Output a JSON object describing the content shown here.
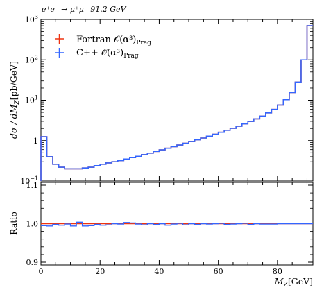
{
  "chart_data": {
    "type": "line",
    "title": "e⁺e⁻ → μ⁺μ⁻ 91.2 GeV",
    "xlabel": "M",
    "xlabel_sub": "Z",
    "xlabel_unit": "[GeV]",
    "ylabel": "dσ / dM",
    "ylabel_sub": "Z",
    "ylabel_unit": "[pb/GeV]",
    "ratio_ylabel": "Ratio",
    "xlim": [
      0,
      92
    ],
    "ylim": [
      0.1,
      1000
    ],
    "yscale": "log",
    "ratio_ylim": [
      0.9,
      1.1
    ],
    "x_ticks": [
      "0",
      "20",
      "40",
      "60",
      "80"
    ],
    "main_y_ticks": [
      {
        "base": "10",
        "exp": "3",
        "value": 1000
      },
      {
        "base": "10",
        "exp": "2",
        "value": 100
      },
      {
        "base": "10",
        "exp": "1",
        "value": 10
      },
      {
        "base": "1",
        "exp": "",
        "value": 1
      },
      {
        "base": "10",
        "exp": "−1",
        "value": 0.1
      }
    ],
    "ratio_y_ticks": [
      "1.1",
      "1.0",
      "0.9"
    ],
    "legend": [
      {
        "name": "Fortran 𝒪(α³)",
        "sub": "Prag",
        "color": "#ee3311"
      },
      {
        "name": "C++ 𝒪(α³)",
        "sub": "Prag",
        "color": "#3366ff"
      }
    ],
    "bin_edges": [
      0,
      2,
      4,
      6,
      8,
      10,
      12,
      14,
      16,
      18,
      20,
      22,
      24,
      26,
      28,
      30,
      32,
      34,
      36,
      38,
      40,
      42,
      44,
      46,
      48,
      50,
      52,
      54,
      56,
      58,
      60,
      62,
      64,
      66,
      68,
      70,
      72,
      74,
      76,
      78,
      80,
      82,
      84,
      86,
      88,
      90,
      92
    ],
    "series": [
      {
        "name": "Fortran 𝒪(α³)",
        "color": "#ee3311",
        "values": [
          1.25,
          0.4,
          0.26,
          0.22,
          0.2,
          0.2,
          0.2,
          0.21,
          0.22,
          0.24,
          0.26,
          0.28,
          0.3,
          0.32,
          0.35,
          0.38,
          0.41,
          0.45,
          0.49,
          0.54,
          0.59,
          0.65,
          0.71,
          0.78,
          0.86,
          0.95,
          1.05,
          1.16,
          1.29,
          1.44,
          1.61,
          1.8,
          2.02,
          2.28,
          2.6,
          2.98,
          3.45,
          4.05,
          4.85,
          5.95,
          7.6,
          10.3,
          15.5,
          28.0,
          100.0,
          700.0
        ],
        "ratio": [
          1.0,
          1.0,
          1.0,
          1.0,
          1.0,
          1.0,
          1.0,
          1.0,
          1.0,
          1.0,
          1.0,
          1.0,
          1.0,
          1.0,
          1.0,
          1.0,
          1.0,
          1.0,
          1.0,
          1.0,
          1.0,
          1.0,
          1.0,
          1.0,
          1.0,
          1.0,
          1.0,
          1.0,
          1.0,
          1.0,
          1.0,
          1.0,
          1.0,
          1.0,
          1.0,
          1.0,
          1.0,
          1.0,
          1.0,
          1.0,
          1.0,
          1.0,
          1.0,
          1.0,
          1.0,
          1.0
        ]
      },
      {
        "name": "C++ 𝒪(α³)",
        "color": "#3366ff",
        "values": [
          1.25,
          0.4,
          0.26,
          0.22,
          0.2,
          0.2,
          0.2,
          0.21,
          0.22,
          0.24,
          0.26,
          0.28,
          0.3,
          0.32,
          0.35,
          0.38,
          0.41,
          0.45,
          0.49,
          0.54,
          0.59,
          0.65,
          0.71,
          0.78,
          0.86,
          0.95,
          1.05,
          1.16,
          1.29,
          1.44,
          1.61,
          1.8,
          2.02,
          2.28,
          2.6,
          2.98,
          3.45,
          4.05,
          4.85,
          5.95,
          7.6,
          10.3,
          15.5,
          28.0,
          100.0,
          700.0
        ],
        "ratio": [
          0.995,
          0.994,
          0.998,
          0.996,
          0.999,
          0.994,
          1.004,
          0.994,
          0.995,
          0.998,
          0.996,
          0.997,
          1.0,
          0.999,
          1.003,
          1.002,
          0.999,
          0.997,
          1.0,
          0.998,
          1.0,
          0.996,
          0.999,
          1.001,
          0.997,
          1.0,
          0.998,
          1.0,
          0.999,
          1.0,
          1.001,
          0.998,
          0.999,
          1.0,
          1.001,
          0.998,
          1.0,
          0.999,
          0.999,
          0.999,
          1.0,
          1.0,
          1.0,
          1.0,
          1.0,
          1.0
        ]
      }
    ]
  }
}
